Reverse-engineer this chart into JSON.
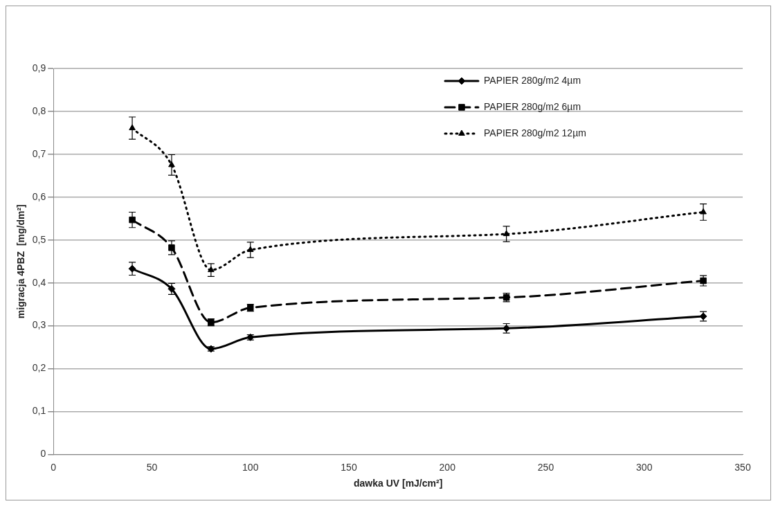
{
  "chart_data": {
    "type": "line",
    "xlabel": "dawka UV [mJ/cm²]",
    "ylabel": "migracja 4PBZ  [mg/dm²]",
    "x": [
      40,
      60,
      80,
      100,
      230,
      330
    ],
    "series": [
      {
        "name": "PAPIER 280g/m2 4µm",
        "color": "#000000",
        "marker": "diamond",
        "line_style": "solid",
        "values": [
          0.433,
          0.386,
          0.246,
          0.273,
          0.294,
          0.322
        ],
        "errors": [
          0.015,
          0.013,
          0.005,
          0.006,
          0.011,
          0.011
        ]
      },
      {
        "name": "PAPIER 280g/m2 6µm",
        "color": "#000000",
        "marker": "square",
        "line_style": "dashed",
        "values": [
          0.547,
          0.482,
          0.308,
          0.342,
          0.366,
          0.405
        ],
        "errors": [
          0.018,
          0.016,
          0.008,
          0.008,
          0.01,
          0.012
        ]
      },
      {
        "name": "PAPIER 280g/m2 12µm",
        "color": "#000000",
        "marker": "triangle",
        "line_style": "dotted",
        "values": [
          0.761,
          0.675,
          0.43,
          0.477,
          0.514,
          0.565
        ],
        "errors": [
          0.026,
          0.024,
          0.015,
          0.018,
          0.018,
          0.019
        ]
      }
    ],
    "xlim": [
      0,
      350
    ],
    "xticks": [
      0,
      50,
      100,
      150,
      200,
      250,
      300,
      350
    ],
    "ylim": [
      0,
      0.9
    ],
    "yticks": [
      {
        "value": 0,
        "label": "0"
      },
      {
        "value": 0.1,
        "label": "0,1"
      },
      {
        "value": 0.2,
        "label": "0,2"
      },
      {
        "value": 0.3,
        "label": "0,3"
      },
      {
        "value": 0.4,
        "label": "0,4"
      },
      {
        "value": 0.5,
        "label": "0,5"
      },
      {
        "value": 0.6,
        "label": "0,6"
      },
      {
        "value": 0.7,
        "label": "0,7"
      },
      {
        "value": 0.8,
        "label": "0,8"
      },
      {
        "value": 0.9,
        "label": "0,9"
      }
    ],
    "grid": "y",
    "legend": "top right"
  }
}
